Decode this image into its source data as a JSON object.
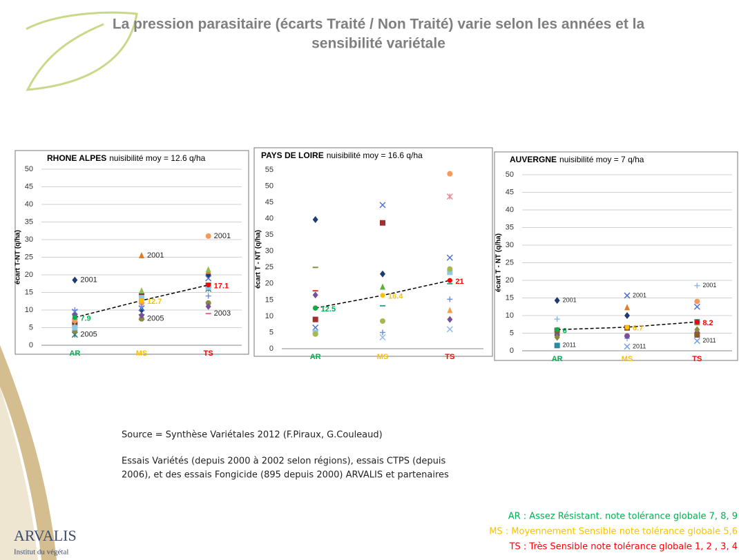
{
  "title_lines": [
    "La pression parasitaire (écarts Traité / Non Traité) varie selon les années et la",
    "sensibilité variétale"
  ],
  "source": "Source = Synthèse Variétales 2012 (F.Piraux, G.Couleaud)",
  "notes": [
    "Essais Variétés (depuis 2000 à 2002 selon régions), essais CTPS (depuis",
    "2006), et des essais Fongicide (895 depuis 2000) ARVALIS et partenaires"
  ],
  "legend_notes": [
    {
      "text": "AR : Assez Résistant. note tolérance globale 7, 8, 9",
      "color": "#00b050"
    },
    {
      "text": "MS : Moyennement Sensible note tolérance globale 5,6",
      "color": "#ffc000"
    },
    {
      "text": "TS : Très Sensible note tolérance globale 1, 2 , 3, 4",
      "color": "#ff0000"
    }
  ],
  "logo": {
    "name": "ARVALIS",
    "tagline": "Institut du végétal"
  },
  "chart_data": [
    {
      "type": "scatter",
      "title": "RHONE ALPES",
      "subtitle": "nuisibilité moy = 12.6 q/ha",
      "y_label": "écart T-NT (q/ha)",
      "categories": [
        "AR",
        "MS",
        "TS"
      ],
      "category_colors": [
        "#00b050",
        "#ffc000",
        "#ff0000"
      ],
      "ylim": [
        0,
        50
      ],
      "yticks": [
        0,
        5,
        10,
        15,
        20,
        25,
        30,
        35,
        40,
        45,
        50
      ],
      "grid": true,
      "series": [
        {
          "marker": "diamond",
          "color": "#1f3b73",
          "values": [
            18.5,
            10,
            20
          ],
          "point_labels": [
            "2001",
            null,
            null
          ]
        },
        {
          "marker": "square",
          "color": "#8b2e2e",
          "values": [
            6,
            14,
            17
          ]
        },
        {
          "marker": "triangle",
          "color": "#e07b28",
          "values": [
            8,
            25.5,
            21
          ],
          "point_labels": [
            null,
            "2001",
            null
          ]
        },
        {
          "marker": "x",
          "color": "#4f6fd0",
          "values": [
            9.5,
            10.5,
            19
          ]
        },
        {
          "marker": "star",
          "color": "#2a7b7b",
          "values": [
            3,
            8,
            16
          ],
          "point_labels": [
            "2005",
            null,
            null
          ]
        },
        {
          "marker": "circle",
          "color": "#f59a5a",
          "values": [
            7,
            12,
            31
          ],
          "point_labels": [
            null,
            null,
            "2001"
          ]
        },
        {
          "marker": "plus",
          "color": "#6f8fe0",
          "values": [
            10,
            11,
            14
          ]
        },
        {
          "marker": "dash",
          "color": "#e86a8a",
          "values": [
            7.5,
            13,
            9
          ],
          "point_labels": [
            null,
            null,
            "2003"
          ]
        },
        {
          "marker": "circle",
          "color": "#8a8a40",
          "values": [
            4,
            7.5,
            12
          ],
          "point_labels": [
            null,
            "2005",
            null
          ]
        },
        {
          "marker": "triangle",
          "color": "#8fc050",
          "values": [
            5.5,
            15.5,
            21.5
          ]
        },
        {
          "marker": "square",
          "color": "#8fc8e8",
          "values": [
            5,
            13.5,
            16.5
          ]
        },
        {
          "marker": "diamond",
          "color": "#7a4f9a",
          "values": [
            8.5,
            8.5,
            11
          ]
        }
      ],
      "mean": {
        "values": [
          7.9,
          12.7,
          17.1
        ],
        "color": "#000000"
      }
    },
    {
      "type": "scatter",
      "title": "PAYS DE LOIRE",
      "subtitle": "nuisibilité moy = 16.6 q/ha",
      "y_label": "écart T - NT (q/ha)",
      "categories": [
        "AR",
        "MS",
        "TS"
      ],
      "category_colors": [
        "#00b050",
        "#ffc000",
        "#ff0000"
      ],
      "ylim": [
        0,
        55
      ],
      "yticks": [
        0,
        5,
        10,
        15,
        20,
        25,
        30,
        35,
        40,
        45,
        50,
        55
      ],
      "grid": false,
      "series": [
        {
          "marker": "diamond",
          "color": "#1f3b73",
          "values": [
            39.7,
            23,
            null
          ]
        },
        {
          "marker": "x",
          "color": "#4f6fd0",
          "values": [
            6.5,
            44.2,
            28
          ]
        },
        {
          "marker": "square",
          "color": "#a03030",
          "values": [
            9,
            38.7,
            null
          ]
        },
        {
          "marker": "circle",
          "color": "#f59a5a",
          "values": [
            12.5,
            null,
            53.8
          ]
        },
        {
          "marker": "star",
          "color": "#e88a9a",
          "values": [
            null,
            null,
            46.8
          ]
        },
        {
          "marker": "dash",
          "color": "#8a8a40",
          "values": [
            25,
            null,
            null
          ]
        },
        {
          "marker": "triangle",
          "color": "#60b040",
          "values": [
            null,
            19,
            null
          ]
        },
        {
          "marker": "diamond",
          "color": "#7a4f9a",
          "values": [
            16.5,
            null,
            9
          ]
        },
        {
          "marker": "dash",
          "color": "#e03030",
          "values": [
            17.8,
            null,
            null
          ]
        },
        {
          "marker": "square",
          "color": "#8fc8e8",
          "values": [
            5,
            null,
            23.5
          ]
        },
        {
          "marker": "circle",
          "color": "#a8b850",
          "values": [
            4.5,
            8.5,
            24.5
          ]
        },
        {
          "marker": "plus",
          "color": "#6f8fe0",
          "values": [
            null,
            5,
            15.2
          ]
        },
        {
          "marker": "x",
          "color": "#8fb8e8",
          "values": [
            null,
            3.5,
            6
          ]
        },
        {
          "marker": "triangle",
          "color": "#f0a050",
          "values": [
            null,
            null,
            11.8
          ]
        },
        {
          "marker": "dash",
          "color": "#2aa0a0",
          "values": [
            null,
            13.2,
            20
          ]
        }
      ],
      "mean": {
        "values": [
          12.5,
          16.4,
          21.0
        ],
        "color": "#000000"
      }
    },
    {
      "type": "scatter",
      "title": "AUVERGNE",
      "subtitle": "nuisibilité moy = 7 q/ha",
      "y_label": "écart T - NT (q/ha)",
      "categories": [
        "AR",
        "MS",
        "TS"
      ],
      "category_colors": [
        "#00b050",
        "#ffc000",
        "#ff0000"
      ],
      "ylim": [
        0,
        50
      ],
      "yticks": [
        0,
        5,
        10,
        15,
        20,
        25,
        30,
        35,
        40,
        45,
        50
      ],
      "grid": true,
      "series": [
        {
          "marker": "diamond",
          "color": "#1f3b73",
          "values": [
            14.3,
            10,
            null
          ],
          "point_labels": [
            "2001",
            null,
            null
          ]
        },
        {
          "marker": "x",
          "color": "#4f6fd0",
          "values": [
            null,
            15.7,
            12.5
          ],
          "point_labels": [
            null,
            "2001",
            null
          ]
        },
        {
          "marker": "plus",
          "color": "#8fb8e8",
          "values": [
            9,
            3.5,
            18.5
          ],
          "point_labels": [
            null,
            null,
            "2001"
          ]
        },
        {
          "marker": "triangle",
          "color": "#e07b28",
          "values": [
            null,
            12.3,
            8
          ]
        },
        {
          "marker": "circle",
          "color": "#f59a5a",
          "values": [
            null,
            null,
            14
          ]
        },
        {
          "marker": "square",
          "color": "#2a8aa0",
          "values": [
            1.5,
            null,
            8.2
          ],
          "point_labels": [
            "2011",
            null,
            null
          ]
        },
        {
          "marker": "x",
          "color": "#6f9fe0",
          "values": [
            null,
            1.2,
            2.8
          ],
          "point_labels": [
            null,
            "2011",
            "2011"
          ]
        },
        {
          "marker": "circle",
          "color": "#7a4f9a",
          "values": [
            4.5,
            4.2,
            5
          ]
        },
        {
          "marker": "diamond",
          "color": "#8a8a40",
          "values": [
            3.8,
            null,
            6
          ]
        },
        {
          "marker": "square",
          "color": "#8b5a2e",
          "values": [
            5.8,
            6.5,
            4.5
          ]
        }
      ],
      "mean": {
        "values": [
          6.0,
          6.7,
          8.2
        ],
        "color": "#000000"
      }
    }
  ]
}
